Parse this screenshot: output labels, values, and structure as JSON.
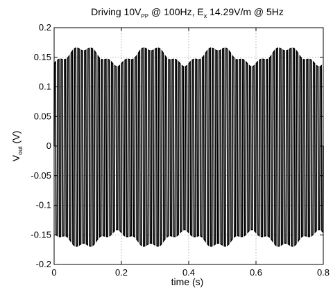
{
  "chart_data": {
    "type": "line",
    "title": {
      "prefix": "Driving 10V",
      "sub1": "PP",
      "middle": " @ 100Hz, E",
      "sub2": "x",
      "suffix": " 14.29V/m @ 5Hz"
    },
    "xlabel": "time (s)",
    "ylabel": {
      "base": "V",
      "sub": "out",
      "rest": " (V)"
    },
    "xlim": [
      0,
      0.8
    ],
    "ylim": [
      -0.2,
      0.2
    ],
    "xticks": [
      0,
      0.2,
      0.4,
      0.6,
      0.8
    ],
    "xtick_labels": [
      "0",
      "0.2",
      "0.4",
      "0.6",
      "0.8"
    ],
    "yticks": [
      -0.2,
      -0.15,
      -0.1,
      -0.05,
      0,
      0.05,
      0.1,
      0.15,
      0.2
    ],
    "ytick_labels": [
      "-0.2",
      "-0.15",
      "-0.1",
      "-0.05",
      "0",
      "0.05",
      "0.1",
      "0.15",
      "0.2"
    ],
    "grid": true,
    "series": [
      {
        "carrier_hz": 100,
        "modulation_hz": 5,
        "peak_high_max": 0.165,
        "peak_high_min": 0.138,
        "peak_low_max": -0.145,
        "peak_low_min": -0.168,
        "t_start": 0,
        "t_end": 0.8
      }
    ]
  }
}
